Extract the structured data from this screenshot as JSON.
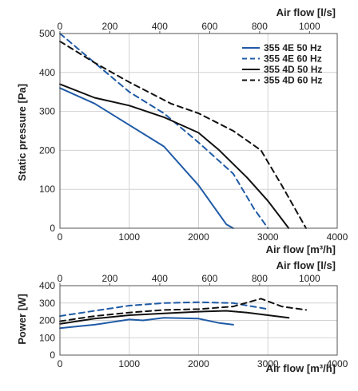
{
  "colors": {
    "blue": "#1f5aa6",
    "black": "#111111",
    "grid": "#d2d2d2",
    "axis": "#555555"
  },
  "chart_data": [
    {
      "type": "line",
      "xlabel": "Air flow [m³/h]",
      "x2label": "Air flow [l/s]",
      "ylabel": "Static pressure [Pa]",
      "xlim": [
        0,
        4000
      ],
      "x2lim": [
        0,
        1111
      ],
      "ylim": [
        0,
        500
      ],
      "xticks": [
        "0",
        "1000",
        "2000",
        "3000",
        "4000"
      ],
      "x2ticks": [
        "0",
        "200",
        "400",
        "600",
        "800",
        "1000"
      ],
      "yticks": [
        "0",
        "100",
        "200",
        "300",
        "400",
        "500"
      ],
      "grid": true,
      "legend_position": "top-right",
      "series": [
        {
          "name": "355 4E 50 Hz",
          "color": "#1f5aa6",
          "dash": false,
          "x": [
            0,
            500,
            1000,
            1500,
            2000,
            2400,
            2500
          ],
          "y": [
            360,
            320,
            265,
            210,
            110,
            10,
            0
          ]
        },
        {
          "name": "355 4E 60 Hz",
          "color": "#1f5aa6",
          "dash": true,
          "x": [
            0,
            600,
            1000,
            1500,
            2000,
            2500,
            2800,
            3000
          ],
          "y": [
            500,
            410,
            350,
            295,
            220,
            140,
            50,
            0
          ]
        },
        {
          "name": "355 4D 50 Hz",
          "color": "#111111",
          "dash": false,
          "x": [
            0,
            500,
            1000,
            1500,
            2000,
            2300,
            2700,
            3000,
            3300
          ],
          "y": [
            370,
            335,
            315,
            285,
            245,
            200,
            130,
            70,
            0
          ]
        },
        {
          "name": "355 4D 60 Hz",
          "color": "#111111",
          "dash": true,
          "x": [
            0,
            500,
            1000,
            1600,
            2000,
            2500,
            2900,
            3200,
            3550
          ],
          "y": [
            480,
            425,
            375,
            320,
            295,
            250,
            200,
            110,
            0
          ]
        }
      ]
    },
    {
      "type": "line",
      "xlabel": "Air flow [m³/h]",
      "x2label": "Air flow [l/s]",
      "ylabel": "Power [W]",
      "xlim": [
        0,
        4000
      ],
      "x2lim": [
        0,
        1111
      ],
      "ylim": [
        0,
        400
      ],
      "xticks": [
        "0",
        "1000",
        "2000",
        "3000",
        "4000"
      ],
      "x2ticks": [
        "0",
        "200",
        "400",
        "600",
        "800",
        "1000"
      ],
      "yticks": [
        "0",
        "100",
        "200",
        "300",
        "400"
      ],
      "grid": true,
      "series": [
        {
          "color": "#1f5aa6",
          "dash": false,
          "x": [
            0,
            500,
            1000,
            1200,
            1500,
            2000,
            2300,
            2500
          ],
          "y": [
            155,
            175,
            205,
            200,
            215,
            210,
            185,
            175
          ]
        },
        {
          "color": "#1f5aa6",
          "dash": true,
          "x": [
            0,
            500,
            1000,
            1500,
            2000,
            2500,
            3000
          ],
          "y": [
            225,
            255,
            285,
            300,
            305,
            300,
            265
          ]
        },
        {
          "color": "#111111",
          "dash": false,
          "x": [
            0,
            500,
            1000,
            1500,
            2000,
            2400,
            2700,
            3000,
            3300
          ],
          "y": [
            180,
            210,
            230,
            240,
            250,
            255,
            245,
            230,
            215
          ]
        },
        {
          "color": "#111111",
          "dash": true,
          "x": [
            0,
            500,
            1000,
            1500,
            2000,
            2500,
            2900,
            3200,
            3550
          ],
          "y": [
            195,
            225,
            245,
            260,
            265,
            280,
            325,
            280,
            260
          ]
        }
      ]
    }
  ]
}
